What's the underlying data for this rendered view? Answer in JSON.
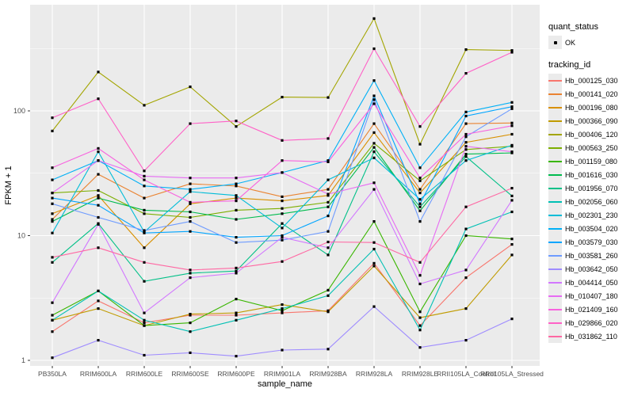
{
  "chart_data": {
    "type": "line",
    "title": "",
    "xlabel": "sample_name",
    "ylabel": "FPKM + 1",
    "y_scale": "log10",
    "ylim": [
      1,
      700
    ],
    "y_major_ticks": [
      1,
      10,
      100
    ],
    "y_major_tick_labels": [
      "1",
      "10",
      "100"
    ],
    "y_minor_ticks": [
      3.162,
      31.62,
      316.2
    ],
    "grid": "on",
    "panel_background": "#ebebeb",
    "grid_color": "#ffffff",
    "point_color": "#000000",
    "tick_label_color": "#4d4d4d",
    "axis_title_color": "#000000",
    "legend_position": "right",
    "categories": [
      "PB350LA",
      "RRIM600LA",
      "RRIM600LE",
      "RRIM600SE",
      "RRIM600PE",
      "RRIM901LA",
      "RRIM928BA",
      "RRIM928LA",
      "RRIM928LE",
      "RRII105LA_Control",
      "RRII105LA_Stressed"
    ],
    "series": [
      {
        "name": "Hb_000125_030",
        "color": "#F8766D",
        "values": [
          1.7,
          3.0,
          2.0,
          2.3,
          2.3,
          2.4,
          2.5,
          6.0,
          1.9,
          4.6,
          8.5
        ]
      },
      {
        "name": "Hb_000141_020",
        "color": "#EA8331",
        "values": [
          13.5,
          31,
          20,
          26,
          25,
          20.5,
          23.5,
          79,
          23.5,
          79,
          80
        ]
      },
      {
        "name": "Hb_000196_080",
        "color": "#D89000",
        "values": [
          15,
          21,
          8.0,
          18,
          20,
          19,
          21,
          67,
          22,
          56,
          65
        ]
      },
      {
        "name": "Hb_000366_090",
        "color": "#C09B00",
        "values": [
          2.1,
          2.6,
          1.9,
          2.35,
          2.4,
          2.8,
          2.45,
          5.7,
          2.2,
          2.6,
          7.0
        ]
      },
      {
        "name": "Hb_000406_120",
        "color": "#A3A500",
        "values": [
          69,
          205,
          111,
          156,
          75,
          129,
          128,
          550,
          54,
          310,
          305
        ]
      },
      {
        "name": "Hb_000563_250",
        "color": "#7CAE00",
        "values": [
          22,
          23,
          15,
          14,
          16,
          16.5,
          18.5,
          55,
          27.5,
          49,
          52
        ]
      },
      {
        "name": "Hb_001159_080",
        "color": "#39B600",
        "values": [
          2.3,
          3.6,
          1.9,
          2.0,
          3.1,
          2.5,
          3.65,
          13,
          2.45,
          10,
          9.4
        ]
      },
      {
        "name": "Hb_001616_030",
        "color": "#00BB4E",
        "values": [
          13,
          20,
          16,
          15.5,
          13.5,
          15,
          17,
          51,
          15.8,
          45,
          46
        ]
      },
      {
        "name": "Hb_001956_070",
        "color": "#00C087",
        "values": [
          6.1,
          12.5,
          4.3,
          5.0,
          5.2,
          12.5,
          7.0,
          47,
          17,
          43,
          20.8
        ]
      },
      {
        "name": "Hb_002056_060",
        "color": "#00C0B4",
        "values": [
          2.1,
          3.6,
          2.1,
          1.7,
          2.1,
          2.6,
          3.3,
          7.8,
          1.75,
          11.3,
          15.5
        ]
      },
      {
        "name": "Hb_002301_230",
        "color": "#00BCD8",
        "values": [
          10.5,
          47,
          10.7,
          22.5,
          21,
          11.5,
          28,
          42,
          19.5,
          40,
          53
        ]
      },
      {
        "name": "Hb_003504_020",
        "color": "#00B0F6",
        "values": [
          28,
          40,
          25,
          23.5,
          26,
          32,
          40,
          175,
          35,
          98,
          117
        ]
      },
      {
        "name": "Hb_003579_030",
        "color": "#00A5FF",
        "values": [
          20,
          17.5,
          10.5,
          10.8,
          9.7,
          10,
          14.4,
          132,
          18,
          91,
          108
        ]
      },
      {
        "name": "Hb_003581_260",
        "color": "#6E9BFF",
        "values": [
          18,
          14,
          11,
          13,
          8.8,
          9.2,
          10.8,
          123,
          13,
          62,
          104
        ]
      },
      {
        "name": "Hb_003642_050",
        "color": "#9F8CFF",
        "values": [
          1.05,
          1.45,
          1.1,
          1.15,
          1.08,
          1.21,
          1.23,
          2.7,
          1.27,
          1.45,
          2.15
        ]
      },
      {
        "name": "Hb_004414_050",
        "color": "#D277FF",
        "values": [
          2.9,
          12.3,
          2.4,
          4.6,
          5.0,
          9.7,
          8.0,
          23.5,
          4.1,
          5.3,
          19.2
        ]
      },
      {
        "name": "Hb_010407_180",
        "color": "#E76BF3",
        "values": [
          22,
          40,
          30,
          29,
          29,
          32,
          21.5,
          26.5,
          4.8,
          52,
          47
        ]
      },
      {
        "name": "Hb_021409_160",
        "color": "#F863DF",
        "values": [
          35,
          50,
          28,
          18.5,
          19,
          40,
          39,
          114,
          29,
          65,
          76
        ]
      },
      {
        "name": "Hb_029866_020",
        "color": "#FF61C7",
        "values": [
          88,
          125,
          33,
          79,
          83,
          58,
          60,
          315,
          75,
          200,
          295
        ]
      },
      {
        "name": "Hb_031862_110",
        "color": "#FF68A3",
        "values": [
          6.7,
          8.0,
          6.1,
          5.3,
          5.5,
          6.2,
          8.9,
          8.8,
          6.1,
          17,
          24
        ]
      }
    ]
  },
  "legend": {
    "quant_status_title": "quant_status",
    "quant_status_ok_label": "OK",
    "tracking_id_title": "tracking_id"
  },
  "axes": {
    "x_title": "sample_name",
    "y_title": "FPKM + 1"
  }
}
